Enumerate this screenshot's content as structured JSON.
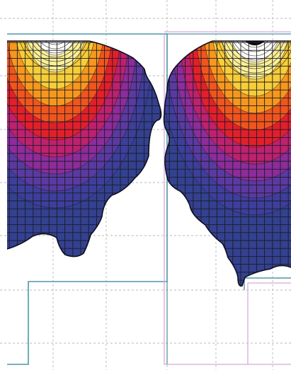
{
  "figure": {
    "panels": [
      {
        "name": "left-contour-panel"
      },
      {
        "name": "right-contour-panel"
      }
    ],
    "colors": {
      "background": "#ffffff",
      "grid_dash": "#b8b8b8",
      "outline": "#4e97a5",
      "outline_right_pink": "#d9a7d6",
      "mesh": "#1b1b2b",
      "contour_levels": [
        "#33418f",
        "#3f3f9b",
        "#5c3aa1",
        "#8f2c9a",
        "#c0216d",
        "#e51f28",
        "#f2571c",
        "#f79a1d",
        "#f7cf3a",
        "#f9f19a",
        "#ffffff",
        "#050505"
      ]
    }
  }
}
